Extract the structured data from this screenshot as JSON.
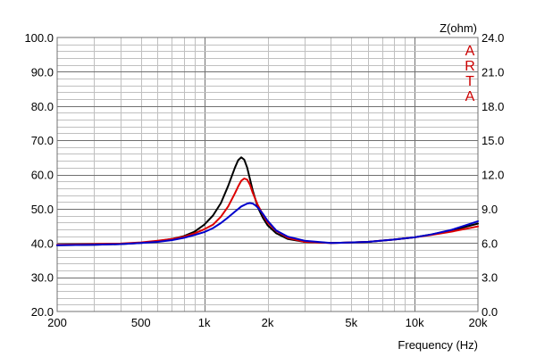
{
  "chart_data": {
    "type": "line",
    "xlabel": "Frequency (Hz)",
    "x_scale": "log",
    "xlim": [
      200,
      20000
    ],
    "x_ticks": [
      {
        "value": 200,
        "label": "200"
      },
      {
        "value": 500,
        "label": "500"
      },
      {
        "value": 1000,
        "label": "1k"
      },
      {
        "value": 2000,
        "label": "2k"
      },
      {
        "value": 5000,
        "label": "5k"
      },
      {
        "value": 10000,
        "label": "10k"
      },
      {
        "value": 20000,
        "label": "20k"
      }
    ],
    "ylim": [
      20,
      100
    ],
    "y_ticks": [
      "20.0",
      "30.0",
      "40.0",
      "50.0",
      "60.0",
      "70.0",
      "80.0",
      "90.0",
      "100.0"
    ],
    "y2label": "Z(ohm)",
    "y2lim": [
      0,
      24
    ],
    "y2_ticks": [
      "0.0",
      "3.0",
      "6.0",
      "9.0",
      "12.0",
      "15.0",
      "18.0",
      "21.0",
      "24.0"
    ],
    "grid": true,
    "watermark": "ARTA",
    "colors": {
      "grid_minor": "#c0c0c0",
      "grid_major": "#707070",
      "watermark": "#cc0000"
    },
    "series": [
      {
        "color": "#000000",
        "axis": "y2",
        "x": [
          200,
          300,
          400,
          500,
          600,
          700,
          800,
          900,
          1000,
          1100,
          1200,
          1300,
          1400,
          1450,
          1500,
          1550,
          1600,
          1650,
          1700,
          1800,
          1900,
          2000,
          2200,
          2500,
          3000,
          4000,
          5000,
          6000,
          8000,
          10000,
          12000,
          15000,
          20000
        ],
        "values": [
          5.8,
          5.85,
          5.9,
          6.0,
          6.15,
          6.35,
          6.6,
          7.0,
          7.6,
          8.4,
          9.5,
          11.0,
          12.6,
          13.25,
          13.5,
          13.3,
          12.6,
          11.6,
          10.6,
          9.1,
          8.2,
          7.55,
          6.85,
          6.35,
          6.1,
          6.0,
          6.05,
          6.1,
          6.3,
          6.5,
          6.75,
          7.1,
          7.7
        ]
      },
      {
        "color": "#dd0000",
        "axis": "y2",
        "x": [
          200,
          300,
          400,
          500,
          600,
          700,
          800,
          900,
          1000,
          1100,
          1200,
          1300,
          1400,
          1450,
          1500,
          1550,
          1600,
          1650,
          1700,
          1800,
          1900,
          2000,
          2200,
          2500,
          3000,
          4000,
          5000,
          6000,
          8000,
          10000,
          12000,
          15000,
          20000
        ],
        "values": [
          5.85,
          5.9,
          5.95,
          6.05,
          6.2,
          6.35,
          6.55,
          6.85,
          7.2,
          7.6,
          8.3,
          9.2,
          10.35,
          10.95,
          11.45,
          11.65,
          11.55,
          11.1,
          10.4,
          9.3,
          8.5,
          7.8,
          7.05,
          6.45,
          6.1,
          6.0,
          6.05,
          6.1,
          6.3,
          6.5,
          6.7,
          7.0,
          7.45
        ]
      },
      {
        "color": "#0000cc",
        "axis": "y2",
        "x": [
          200,
          300,
          400,
          500,
          600,
          700,
          800,
          900,
          1000,
          1100,
          1200,
          1300,
          1400,
          1500,
          1600,
          1650,
          1700,
          1750,
          1800,
          1900,
          2000,
          2200,
          2500,
          3000,
          4000,
          5000,
          6000,
          8000,
          10000,
          12000,
          15000,
          20000
        ],
        "values": [
          5.8,
          5.85,
          5.9,
          6.0,
          6.1,
          6.25,
          6.45,
          6.7,
          6.95,
          7.3,
          7.75,
          8.25,
          8.75,
          9.2,
          9.45,
          9.5,
          9.45,
          9.3,
          9.1,
          8.55,
          7.95,
          7.1,
          6.55,
          6.2,
          6.0,
          6.05,
          6.1,
          6.3,
          6.5,
          6.75,
          7.15,
          7.9
        ]
      }
    ]
  }
}
